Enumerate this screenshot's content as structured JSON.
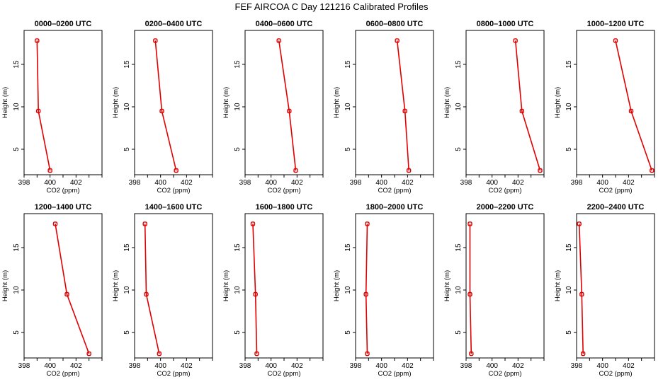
{
  "figure": {
    "title": "FEF AIRCOA C  Day 121216  Calibrated Profiles"
  },
  "colors": {
    "line": "#e00000",
    "axis": "#000000",
    "background": "#ffffff"
  },
  "chart_data": [
    {
      "type": "line",
      "title": "0000–0200 UTC",
      "xlabel": "CO2 (ppm)",
      "ylabel": "Height (m)",
      "xlim": [
        398,
        404
      ],
      "ylim": [
        2,
        19
      ],
      "x_ticks": [
        398,
        400,
        402
      ],
      "y_ticks": [
        5,
        10,
        15
      ],
      "grid": false,
      "series": [
        {
          "x": [
            400.0,
            399.1,
            399.0
          ],
          "y": [
            2.5,
            9.5,
            17.8
          ]
        }
      ]
    },
    {
      "type": "line",
      "title": "0200–0400 UTC",
      "xlabel": "CO2 (ppm)",
      "ylabel": "Height (m)",
      "xlim": [
        398,
        404
      ],
      "ylim": [
        2,
        19
      ],
      "x_ticks": [
        398,
        400,
        402
      ],
      "y_ticks": [
        5,
        10,
        15
      ],
      "grid": false,
      "series": [
        {
          "x": [
            401.2,
            400.1,
            399.6
          ],
          "y": [
            2.5,
            9.5,
            17.8
          ]
        }
      ]
    },
    {
      "type": "line",
      "title": "0400–0600 UTC",
      "xlabel": "CO2 (ppm)",
      "ylabel": "Height (m)",
      "xlim": [
        398,
        404
      ],
      "ylim": [
        2,
        19
      ],
      "x_ticks": [
        398,
        400,
        402
      ],
      "y_ticks": [
        5,
        10,
        15
      ],
      "grid": false,
      "series": [
        {
          "x": [
            401.9,
            401.4,
            400.6
          ],
          "y": [
            2.5,
            9.5,
            17.8
          ]
        }
      ]
    },
    {
      "type": "line",
      "title": "0600–0800 UTC",
      "xlabel": "CO2 (ppm)",
      "ylabel": "Height (m)",
      "xlim": [
        398,
        404
      ],
      "ylim": [
        2,
        19
      ],
      "x_ticks": [
        398,
        400,
        402
      ],
      "y_ticks": [
        5,
        10,
        15
      ],
      "grid": false,
      "series": [
        {
          "x": [
            402.1,
            401.8,
            401.2
          ],
          "y": [
            2.5,
            9.5,
            17.8
          ]
        }
      ]
    },
    {
      "type": "line",
      "title": "0800–1000 UTC",
      "xlabel": "CO2 (ppm)",
      "ylabel": "Height (m)",
      "xlim": [
        398,
        404
      ],
      "ylim": [
        2,
        19
      ],
      "x_ticks": [
        398,
        400,
        402
      ],
      "y_ticks": [
        5,
        10,
        15
      ],
      "grid": false,
      "series": [
        {
          "x": [
            403.7,
            402.3,
            401.8
          ],
          "y": [
            2.5,
            9.5,
            17.8
          ]
        }
      ]
    },
    {
      "type": "line",
      "title": "1000–1200 UTC",
      "xlabel": "CO2 (ppm)",
      "ylabel": "Height (m)",
      "xlim": [
        398,
        404
      ],
      "ylim": [
        2,
        19
      ],
      "x_ticks": [
        398,
        400,
        402
      ],
      "y_ticks": [
        5,
        10,
        15
      ],
      "grid": false,
      "series": [
        {
          "x": [
            403.8,
            402.2,
            401.0
          ],
          "y": [
            2.5,
            9.5,
            17.8
          ]
        }
      ]
    },
    {
      "type": "line",
      "title": "1200–1400 UTC",
      "xlabel": "CO2 (ppm)",
      "ylabel": "Height (m)",
      "xlim": [
        398,
        404
      ],
      "ylim": [
        2,
        19
      ],
      "x_ticks": [
        398,
        400,
        402
      ],
      "y_ticks": [
        5,
        10,
        15
      ],
      "grid": false,
      "series": [
        {
          "x": [
            403.0,
            401.3,
            400.4
          ],
          "y": [
            2.5,
            9.5,
            17.8
          ]
        }
      ]
    },
    {
      "type": "line",
      "title": "1400–1600 UTC",
      "xlabel": "CO2 (ppm)",
      "ylabel": "Height (m)",
      "xlim": [
        398,
        404
      ],
      "ylim": [
        2,
        19
      ],
      "x_ticks": [
        398,
        400,
        402
      ],
      "y_ticks": [
        5,
        10,
        15
      ],
      "grid": false,
      "series": [
        {
          "x": [
            399.9,
            398.9,
            398.8
          ],
          "y": [
            2.5,
            9.5,
            17.8
          ]
        }
      ]
    },
    {
      "type": "line",
      "title": "1600–1800 UTC",
      "xlabel": "CO2 (ppm)",
      "ylabel": "Height (m)",
      "xlim": [
        398,
        404
      ],
      "ylim": [
        2,
        19
      ],
      "x_ticks": [
        398,
        400,
        402
      ],
      "y_ticks": [
        5,
        10,
        15
      ],
      "grid": false,
      "series": [
        {
          "x": [
            398.9,
            398.8,
            398.6
          ],
          "y": [
            2.5,
            9.5,
            17.8
          ]
        }
      ]
    },
    {
      "type": "line",
      "title": "1800–2000 UTC",
      "xlabel": "CO2 (ppm)",
      "ylabel": "Height (m)",
      "xlim": [
        398,
        404
      ],
      "ylim": [
        2,
        19
      ],
      "x_ticks": [
        398,
        400,
        402
      ],
      "y_ticks": [
        5,
        10,
        15
      ],
      "grid": false,
      "series": [
        {
          "x": [
            398.9,
            398.8,
            398.9
          ],
          "y": [
            2.5,
            9.5,
            17.8
          ]
        }
      ]
    },
    {
      "type": "line",
      "title": "2000–2200 UTC",
      "xlabel": "CO2 (ppm)",
      "ylabel": "Height (m)",
      "xlim": [
        398,
        404
      ],
      "ylim": [
        2,
        19
      ],
      "x_ticks": [
        398,
        400,
        402
      ],
      "y_ticks": [
        5,
        10,
        15
      ],
      "grid": false,
      "series": [
        {
          "x": [
            398.4,
            398.3,
            398.3
          ],
          "y": [
            2.5,
            9.5,
            17.8
          ]
        }
      ]
    },
    {
      "type": "line",
      "title": "2200–2400 UTC",
      "xlabel": "CO2 (ppm)",
      "ylabel": "Height (m)",
      "xlim": [
        398,
        404
      ],
      "ylim": [
        2,
        19
      ],
      "x_ticks": [
        398,
        400,
        402
      ],
      "y_ticks": [
        5,
        10,
        15
      ],
      "grid": false,
      "series": [
        {
          "x": [
            398.5,
            398.4,
            398.2
          ],
          "y": [
            2.5,
            9.5,
            17.8
          ]
        }
      ]
    }
  ]
}
